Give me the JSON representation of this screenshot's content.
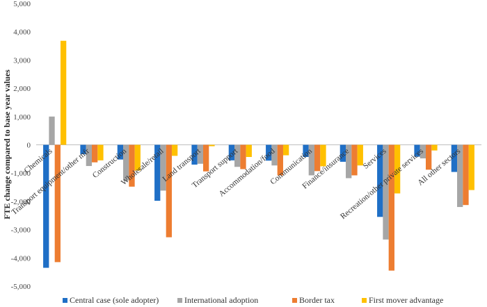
{
  "chart_data": {
    "type": "bar",
    "title": "",
    "xlabel": "",
    "ylabel": "FTE change compared to base year values",
    "ylim": [
      -5000,
      5000
    ],
    "yticks": [
      5000,
      4000,
      3000,
      2000,
      1000,
      0,
      -1000,
      -2000,
      -3000,
      -4000,
      -5000
    ],
    "ytick_labels": [
      "5,000",
      "4,000",
      "3,000",
      "2,000",
      "1,000",
      "0",
      "-1,000",
      "-2,000",
      "-3,000",
      "-4,000",
      "-5,000"
    ],
    "grid": false,
    "legend_position": "bottom",
    "categories": [
      "Chemicals",
      "Transport equipment/other mfr",
      "Construction",
      "Wholesale/retail",
      "Land transport",
      "Transport support",
      "Accommodation/food",
      "Communication",
      "Finance/insurance",
      "Services",
      "Recreation/other private services",
      "All other sectors"
    ],
    "series": [
      {
        "name": "Central case (sole adopter)",
        "color": "#1f6fc6",
        "values": [
          -4350,
          -330,
          -520,
          -1980,
          -700,
          -550,
          -560,
          -430,
          -600,
          -2550,
          -420,
          -960
        ]
      },
      {
        "name": "International adoption",
        "color": "#a6a6a6",
        "values": [
          1000,
          -750,
          -1260,
          -1620,
          -670,
          -780,
          -730,
          -1080,
          -1180,
          -3350,
          -480,
          -2200
        ]
      },
      {
        "name": "Border tax",
        "color": "#ed7d31",
        "values": [
          -4150,
          -620,
          -1480,
          -3270,
          -940,
          -860,
          -1080,
          -930,
          -1080,
          -4450,
          -880,
          -2130
        ]
      },
      {
        "name": "First mover advantage",
        "color": "#ffc000",
        "values": [
          3680,
          -550,
          -910,
          -390,
          -50,
          -430,
          -370,
          -760,
          -730,
          -1720,
          -200,
          -1600
        ]
      }
    ]
  }
}
